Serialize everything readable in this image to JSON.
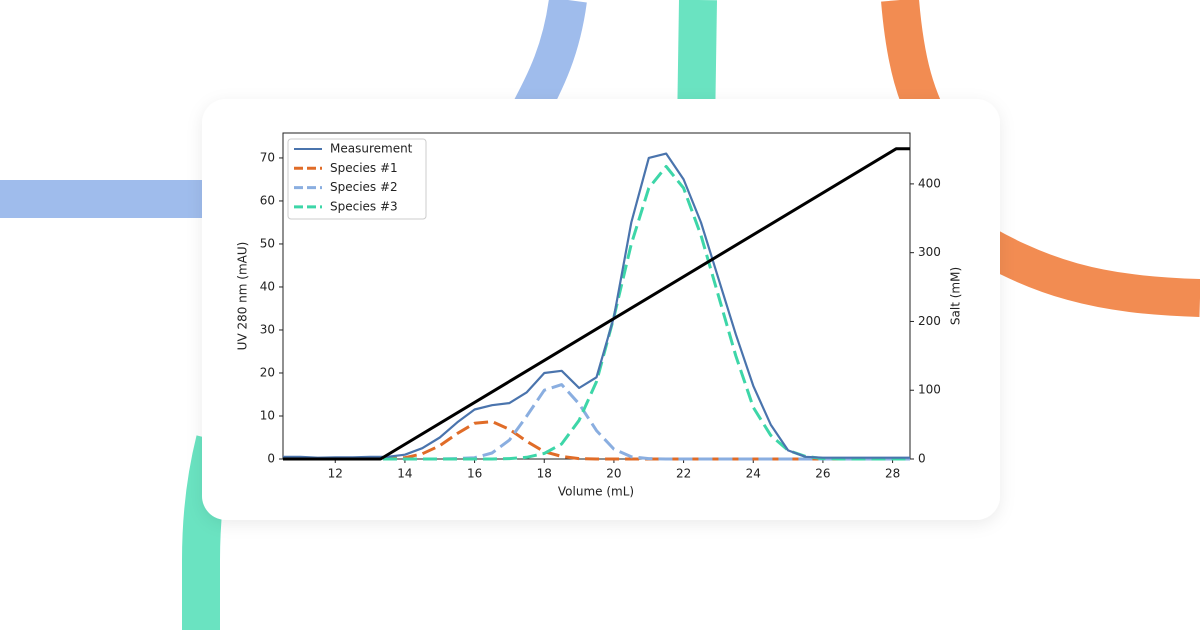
{
  "chart_data": {
    "type": "line",
    "xlabel": "Volume (mL)",
    "ylabel": "UV 280 nm (mAU)",
    "y2label": "Salt (mM)",
    "x": [
      10.5,
      11,
      11.5,
      12,
      12.5,
      13,
      13.5,
      14,
      14.5,
      15,
      15.5,
      16,
      16.5,
      17,
      17.5,
      18,
      18.5,
      19,
      19.5,
      20,
      20.5,
      21,
      21.5,
      22,
      22.5,
      23,
      23.5,
      24,
      24.5,
      25,
      25.5,
      26,
      26.5,
      27,
      27.5,
      28,
      28.5
    ],
    "series": [
      {
        "name": "Measurement",
        "color": "#4a74ad",
        "dash": false,
        "values": [
          0.5,
          0.5,
          0.3,
          0.4,
          0.4,
          0.5,
          0.5,
          1,
          2.5,
          5,
          8.5,
          11.5,
          12.5,
          13,
          15.5,
          20,
          20.5,
          16.5,
          19,
          33,
          55,
          70,
          71,
          65,
          55,
          42,
          29,
          17,
          8,
          2,
          0.5,
          0.3,
          0.3,
          0.3,
          0.3,
          0.3,
          0.3
        ]
      },
      {
        "name": "Species #1",
        "color": "#e06c28",
        "dash": true,
        "values": [
          0,
          0,
          0,
          0,
          0,
          0,
          0.1,
          0.3,
          1.2,
          3.1,
          5.9,
          8.3,
          8.7,
          6.9,
          4.1,
          1.7,
          0.6,
          0.1,
          0,
          0,
          0,
          0,
          0,
          0,
          0,
          0,
          0,
          0,
          0,
          0,
          0,
          0,
          0,
          0,
          0,
          0,
          0
        ]
      },
      {
        "name": "Species #2",
        "color": "#8aaee0",
        "dash": true,
        "values": [
          0,
          0,
          0,
          0,
          0,
          0,
          0,
          0,
          0,
          0,
          0.1,
          0.3,
          1.4,
          4.4,
          10,
          16,
          17.3,
          12.8,
          6.6,
          2.3,
          0.5,
          0.1,
          0,
          0,
          0,
          0,
          0,
          0,
          0,
          0,
          0,
          0,
          0,
          0,
          0,
          0,
          0
        ]
      },
      {
        "name": "Species #3",
        "color": "#3dd6a8",
        "dash": true,
        "values": [
          0,
          0,
          0,
          0,
          0,
          0,
          0,
          0,
          0,
          0,
          0,
          0,
          0,
          0.1,
          0.4,
          1.3,
          3.5,
          9,
          18,
          33,
          50,
          63,
          68,
          63,
          52,
          38,
          24,
          12,
          5.5,
          2,
          0.6,
          0.1,
          0,
          0,
          0,
          0,
          0
        ]
      },
      {
        "color": "#000000",
        "dash": false,
        "axis": "y2",
        "legend": false,
        "x": [
          10.5,
          13.3,
          28.1,
          28.5
        ],
        "values": [
          0,
          0,
          451,
          451
        ]
      }
    ],
    "xlim": [
      10.5,
      28.5
    ],
    "xticks": [
      12,
      14,
      16,
      18,
      20,
      22,
      24,
      26,
      28
    ],
    "ylim": [
      0,
      75.8
    ],
    "yticks": [
      0,
      10,
      20,
      30,
      40,
      50,
      60,
      70
    ],
    "y2lim": [
      0,
      474
    ],
    "y2ticks": [
      0,
      100,
      200,
      300,
      400
    ],
    "legend": "upper left",
    "grid": false
  }
}
